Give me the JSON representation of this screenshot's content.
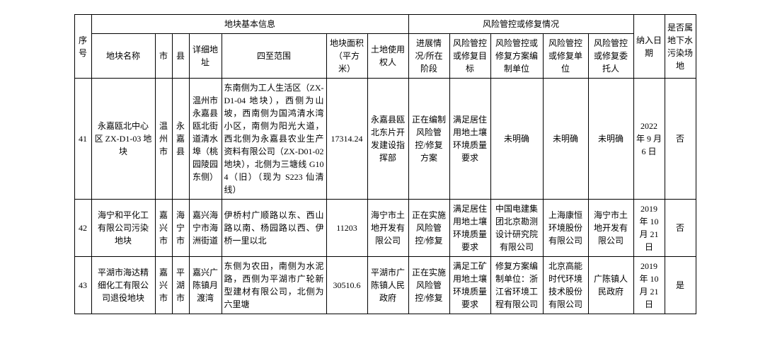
{
  "headers": {
    "group_basic": "地块基本信息",
    "group_risk": "风险管控或修复情况",
    "seq": "序号",
    "name": "地块名称",
    "city": "市",
    "county": "县",
    "address": "详细地址",
    "scope": "四至范围",
    "area": "地块面积（平方米）",
    "user": "土地使用权人",
    "progress": "进展情况/所在阶段",
    "target": "风险管控或修复目标",
    "plan_unit": "风险管控或修复方案编制单位",
    "repair_unit": "风险管控或修复单位",
    "client": "风险管控或修复委托人",
    "date": "纳入日期",
    "groundwater": "是否属地下水污染场地"
  },
  "rows": [
    {
      "seq": "41",
      "name": "永嘉瓯北中心区 ZX-D1-03 地块",
      "city": "温州市",
      "county": "永嘉县",
      "address": "温州市永嘉县瓯北街道清水埠（桃园陵园东侧）",
      "scope": "东南侧为工人生活区（ZX-D1-04 地块），西侧为山坡，西南侧为国鸿清水湾小区，南侧为阳光大道，西北侧为永嘉县农业生产资料有限公司（ZX-D01-02 地块），北侧为三塘线 G104（旧）（现为 S223 仙清线）",
      "area": "17314.24",
      "user": "永嘉县瓯北东片开发建设指挥部",
      "progress": "正在编制风险管控/修复方案",
      "target": "满足居住用地土壤环境质量要求",
      "plan_unit": "未明确",
      "repair_unit": "未明确",
      "client": "未明确",
      "date": "2022 年 9 月 6 日",
      "groundwater": "否"
    },
    {
      "seq": "42",
      "name": "海宁和平化工有限公司污染地块",
      "city": "嘉兴市",
      "county": "海宁市",
      "address": "嘉兴海宁市海洲街道",
      "scope": "伊桥村广顺路以东、西山路以南、杨园路以西、伊桥一里以北",
      "area": "11203",
      "user": "海宁市土地开发有限公司",
      "progress": "正在实施风险管控/修复",
      "target": "满足居住用地土壤环境质量要求",
      "plan_unit": "中国电建集团北京勘测设计研究院有限公司",
      "repair_unit": "上海康恒环境股份有限公司",
      "client": "海宁市土地开发有限公司",
      "date": "2019 年 10 月 21 日",
      "groundwater": "否"
    },
    {
      "seq": "43",
      "name": "平湖市海达精细化工有限公司退役地块",
      "city": "嘉兴市",
      "county": "平湖市",
      "address": "嘉兴广陈镇月渡湾",
      "scope": "东侧为农田，南侧为水泥路，西侧为平湖市广轮新型建材有限公司，北侧为六里塘",
      "area": "30510.6",
      "user": "平湖市广陈镇人民政府",
      "progress": "正在实施风险管控/修复",
      "target": "满足工矿用地土壤环境质量要求",
      "plan_unit": "修复方案编制单位：浙江省环境工程有限公司",
      "repair_unit": "北京高能时代环境技术股份有限公司",
      "client": "广陈镇人民政府",
      "date": "2019 年 10 月 21 日",
      "groundwater": "是"
    }
  ]
}
